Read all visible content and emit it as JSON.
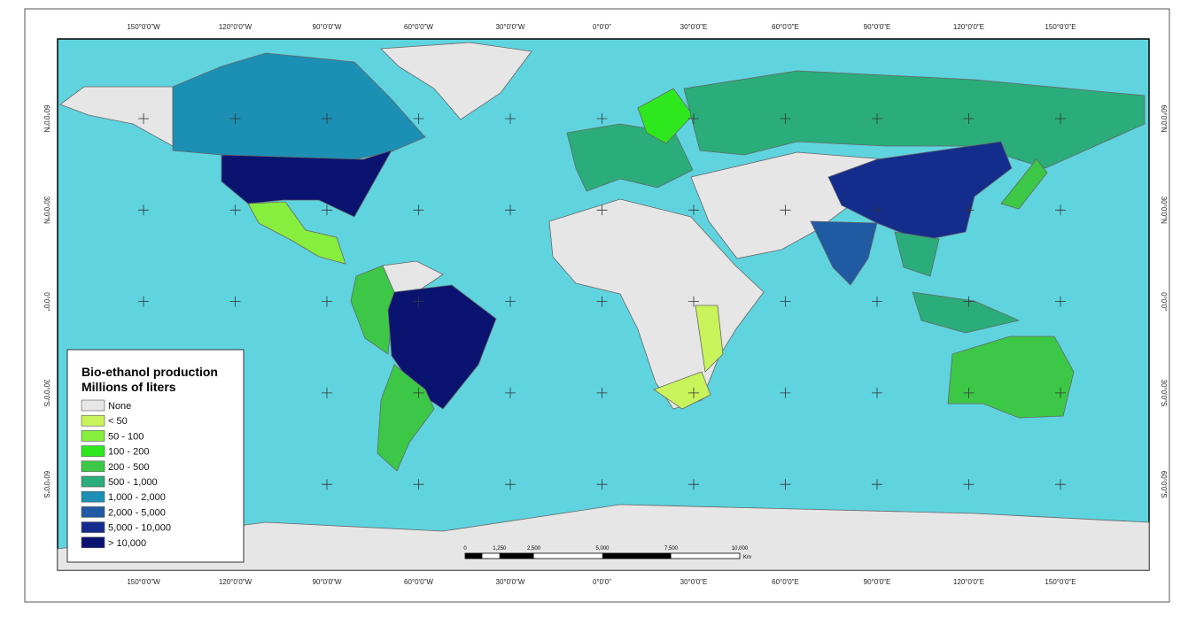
{
  "map": {
    "longitude_labels": [
      "150°0'0\"W",
      "120°0'0\"W",
      "90°0'0\"W",
      "60°0'0\"W",
      "30°0'0\"W",
      "0°0'0\"",
      "30°0'0\"E",
      "60°0'0\"E",
      "90°0'0\"E",
      "120°0'0\"E",
      "150°0'0\"E"
    ],
    "latitude_labels": [
      "60°0'0\"N",
      "30°0'0\"N",
      "0°0'0\"",
      "30°0'0\"S",
      "60°0'0\"S"
    ],
    "legend": {
      "title": "Bio-ethanol production",
      "subtitle": "Millions of liters",
      "items": [
        {
          "label": "None",
          "color": "#e6e6e6"
        },
        {
          "label": "< 50",
          "color": "#c8f35a"
        },
        {
          "label": "50 - 100",
          "color": "#86ee3c"
        },
        {
          "label": "100 - 200",
          "color": "#2ee81e"
        },
        {
          "label": "200 - 500",
          "color": "#3cc846"
        },
        {
          "label": "500 - 1,000",
          "color": "#2aad7a"
        },
        {
          "label": "1,000 - 2,000",
          "color": "#1c8fb4"
        },
        {
          "label": "2,000 - 5,000",
          "color": "#1f5aa2"
        },
        {
          "label": "5,000 - 10,000",
          "color": "#142c8c"
        },
        {
          "label": "> 10,000",
          "color": "#0a1470"
        }
      ]
    },
    "scale_bar": {
      "labels": [
        "0",
        "1,250",
        "2,500",
        "5,000",
        "7,500",
        "10,000"
      ],
      "unit": "Km"
    }
  }
}
